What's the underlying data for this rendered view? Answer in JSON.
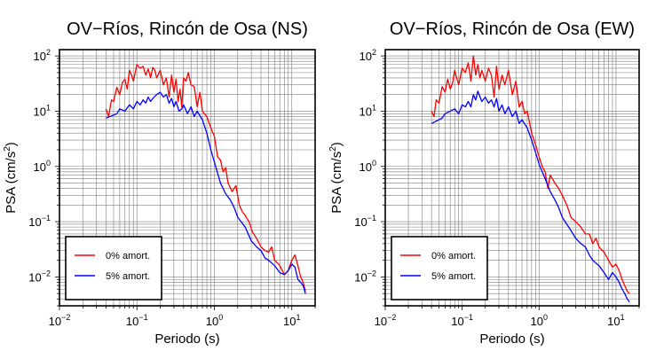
{
  "chart_data": [
    {
      "type": "line",
      "title": "OV−Ríos, Rincón de Osa (NS)",
      "xlabel": "Periodo (s)",
      "ylabel_main": "PSA (cm/s",
      "ylabel_sup": "2",
      "ylabel_end": ")",
      "xscale": "log",
      "yscale": "log",
      "xlim": [
        0.01,
        20
      ],
      "ylim": [
        0.003,
        130
      ],
      "grid": true,
      "legend_position": "bottom-left",
      "x_ticks": [
        {
          "value": 0.01,
          "base": "10",
          "exp": "−2"
        },
        {
          "value": 0.1,
          "base": "10",
          "exp": "−1"
        },
        {
          "value": 1,
          "base": "10",
          "exp": "0"
        },
        {
          "value": 10,
          "base": "10",
          "exp": "1"
        }
      ],
      "y_ticks": [
        {
          "value": 100,
          "base": "10",
          "exp": "2"
        },
        {
          "value": 10,
          "base": "10",
          "exp": "1"
        },
        {
          "value": 1,
          "base": "10",
          "exp": "0"
        },
        {
          "value": 0.1,
          "base": "10",
          "exp": "−1"
        },
        {
          "value": 0.01,
          "base": "10",
          "exp": "−2"
        }
      ],
      "series": [
        {
          "name": "0% amort.",
          "color": "#ff0000",
          "x": [
            0.04,
            0.043,
            0.047,
            0.05,
            0.055,
            0.06,
            0.065,
            0.07,
            0.075,
            0.08,
            0.085,
            0.09,
            0.1,
            0.11,
            0.12,
            0.13,
            0.14,
            0.15,
            0.16,
            0.17,
            0.18,
            0.2,
            0.22,
            0.24,
            0.26,
            0.28,
            0.3,
            0.32,
            0.34,
            0.36,
            0.38,
            0.4,
            0.43,
            0.46,
            0.5,
            0.55,
            0.6,
            0.65,
            0.7,
            0.8,
            0.9,
            1.0,
            1.1,
            1.2,
            1.3,
            1.4,
            1.5,
            1.7,
            1.9,
            2.1,
            2.3,
            2.5,
            2.8,
            3.1,
            3.5,
            4.0,
            4.5,
            5.0,
            5.5,
            6.0,
            6.5,
            7.0,
            8.0,
            9.0,
            10.0,
            11.0,
            12.0,
            13.0,
            14.0,
            15.0
          ],
          "y": [
            11,
            8,
            16,
            15,
            27,
            20,
            33,
            38,
            25,
            55,
            45,
            35,
            70,
            60,
            65,
            45,
            58,
            40,
            62,
            55,
            40,
            55,
            30,
            40,
            18,
            45,
            22,
            38,
            15,
            25,
            12,
            40,
            35,
            50,
            30,
            28,
            12,
            22,
            10,
            8,
            5,
            3.5,
            1.5,
            1.3,
            0.8,
            0.95,
            0.5,
            0.35,
            0.45,
            0.2,
            0.15,
            0.13,
            0.1,
            0.065,
            0.05,
            0.035,
            0.03,
            0.028,
            0.035,
            0.02,
            0.018,
            0.016,
            0.011,
            0.013,
            0.02,
            0.025,
            0.016,
            0.01,
            0.008,
            0.0055
          ]
        },
        {
          "name": "5% amort.",
          "color": "#0000ff",
          "x": [
            0.04,
            0.045,
            0.05,
            0.055,
            0.06,
            0.07,
            0.08,
            0.09,
            0.1,
            0.11,
            0.12,
            0.13,
            0.14,
            0.15,
            0.16,
            0.18,
            0.2,
            0.22,
            0.24,
            0.26,
            0.28,
            0.3,
            0.32,
            0.35,
            0.38,
            0.4,
            0.45,
            0.5,
            0.55,
            0.6,
            0.7,
            0.8,
            0.9,
            1.0,
            1.2,
            1.4,
            1.6,
            1.8,
            2.0,
            2.5,
            3.0,
            3.5,
            4.0,
            4.5,
            5.0,
            6.0,
            7.0,
            8.0,
            9.0,
            10.0,
            11.0,
            12.0,
            13.0,
            14.0,
            15.0
          ],
          "y": [
            7.5,
            8,
            8.5,
            9,
            11,
            10,
            13,
            11,
            15,
            13,
            16,
            14,
            18,
            15,
            17,
            20,
            22,
            18,
            20,
            14,
            17,
            12,
            15,
            10,
            11,
            13,
            9,
            12,
            8,
            10,
            7,
            4,
            2,
            1.2,
            0.5,
            0.32,
            0.25,
            0.18,
            0.12,
            0.08,
            0.045,
            0.035,
            0.03,
            0.022,
            0.02,
            0.016,
            0.012,
            0.011,
            0.013,
            0.017,
            0.015,
            0.009,
            0.008,
            0.007,
            0.005
          ]
        }
      ]
    },
    {
      "type": "line",
      "title": "OV−Ríos, Rincón de Osa (EW)",
      "xlabel": "Periodo (s)",
      "ylabel_main": "PSA (cm/s",
      "ylabel_sup": "2",
      "ylabel_end": ")",
      "xscale": "log",
      "yscale": "log",
      "xlim": [
        0.01,
        20
      ],
      "ylim": [
        0.003,
        130
      ],
      "grid": true,
      "legend_position": "bottom-left",
      "x_ticks": [
        {
          "value": 0.01,
          "base": "10",
          "exp": "−2"
        },
        {
          "value": 0.1,
          "base": "10",
          "exp": "−1"
        },
        {
          "value": 1,
          "base": "10",
          "exp": "0"
        },
        {
          "value": 10,
          "base": "10",
          "exp": "1"
        }
      ],
      "y_ticks": [
        {
          "value": 100,
          "base": "10",
          "exp": "2"
        },
        {
          "value": 10,
          "base": "10",
          "exp": "1"
        },
        {
          "value": 1,
          "base": "10",
          "exp": "0"
        },
        {
          "value": 0.1,
          "base": "10",
          "exp": "−1"
        },
        {
          "value": 0.01,
          "base": "10",
          "exp": "−2"
        }
      ],
      "series": [
        {
          "name": "0% amort.",
          "color": "#ff0000",
          "x": [
            0.04,
            0.043,
            0.046,
            0.05,
            0.055,
            0.06,
            0.065,
            0.07,
            0.075,
            0.08,
            0.085,
            0.09,
            0.1,
            0.11,
            0.12,
            0.13,
            0.14,
            0.15,
            0.16,
            0.17,
            0.18,
            0.2,
            0.22,
            0.24,
            0.26,
            0.28,
            0.3,
            0.33,
            0.36,
            0.4,
            0.45,
            0.5,
            0.55,
            0.6,
            0.65,
            0.7,
            0.8,
            0.9,
            1.0,
            1.1,
            1.2,
            1.3,
            1.4,
            1.6,
            1.8,
            2.0,
            2.3,
            2.6,
            3.0,
            3.5,
            4.0,
            4.5,
            5.0,
            5.5,
            6.0,
            7.0,
            8.0,
            9.0,
            10.0,
            11.0,
            12.0,
            13.0,
            14.0,
            15.0
          ],
          "y": [
            10,
            8,
            16,
            14,
            28,
            22,
            38,
            25,
            32,
            55,
            40,
            30,
            60,
            50,
            75,
            35,
            100,
            45,
            70,
            40,
            55,
            35,
            60,
            45,
            18,
            65,
            25,
            45,
            30,
            55,
            20,
            35,
            12,
            15,
            9,
            10,
            4,
            2.5,
            1.5,
            1.0,
            0.8,
            0.4,
            0.7,
            0.5,
            0.4,
            0.3,
            0.2,
            0.12,
            0.1,
            0.08,
            0.06,
            0.06,
            0.04,
            0.05,
            0.035,
            0.028,
            0.02,
            0.015,
            0.017,
            0.013,
            0.009,
            0.007,
            0.0055,
            0.005
          ]
        },
        {
          "name": "5% amort.",
          "color": "#0000ff",
          "x": [
            0.04,
            0.045,
            0.05,
            0.055,
            0.06,
            0.07,
            0.08,
            0.09,
            0.1,
            0.11,
            0.12,
            0.13,
            0.14,
            0.15,
            0.16,
            0.18,
            0.2,
            0.22,
            0.24,
            0.26,
            0.28,
            0.3,
            0.33,
            0.36,
            0.4,
            0.45,
            0.5,
            0.55,
            0.6,
            0.7,
            0.8,
            0.9,
            1.0,
            1.2,
            1.4,
            1.6,
            1.8,
            2.0,
            2.5,
            3.0,
            3.5,
            4.0,
            4.5,
            5.0,
            6.0,
            7.0,
            8.0,
            9.0,
            10.0,
            11.0,
            12.0,
            13.0,
            14.0,
            15.0
          ],
          "y": [
            6,
            6.5,
            7,
            7.5,
            9,
            10,
            11,
            9,
            13,
            12,
            15,
            12,
            20,
            16,
            23,
            15,
            18,
            14,
            16,
            12,
            17,
            10,
            13,
            9,
            12,
            8,
            10,
            6,
            7,
            5,
            3,
            1.8,
            1.1,
            0.6,
            0.35,
            0.25,
            0.18,
            0.12,
            0.075,
            0.05,
            0.04,
            0.035,
            0.025,
            0.02,
            0.016,
            0.012,
            0.009,
            0.012,
            0.01,
            0.008,
            0.006,
            0.005,
            0.004,
            0.0035
          ]
        }
      ]
    }
  ]
}
